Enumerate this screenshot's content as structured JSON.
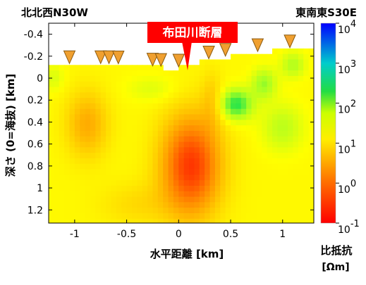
{
  "chart_data": {
    "type": "heatmap",
    "title": "布田川断層",
    "direction_left": "北北西N30W",
    "direction_right": "東南東S30E",
    "xlabel": "水平距離 [km]",
    "ylabel": "深さ (0=海抜) [km]",
    "xlim": [
      -1.25,
      1.3
    ],
    "ylim": [
      1.32,
      -0.5
    ],
    "x_ticks": [
      -1,
      -0.5,
      0,
      0.5,
      1
    ],
    "x_tick_labels": [
      "-1",
      "-0.5",
      "0",
      "0.5",
      "1"
    ],
    "y_ticks": [
      -0.4,
      -0.2,
      0,
      0.2,
      0.4,
      0.6,
      0.8,
      1,
      1.2
    ],
    "y_tick_labels": [
      "-0.4",
      "-0.2",
      "0",
      "0.2",
      "0.4",
      "0.6",
      "0.8",
      "1",
      "1.2"
    ],
    "colorbar": {
      "label": "比抵抗",
      "unit": "[Ωm]",
      "scale": "log",
      "range_exponent": [
        -1,
        4
      ],
      "ticks": [
        {
          "base": "10",
          "exp": "4",
          "value": 4
        },
        {
          "base": "10",
          "exp": "3",
          "value": 3
        },
        {
          "base": "10",
          "exp": "2",
          "value": 2
        },
        {
          "base": "10",
          "exp": "1",
          "value": 1
        },
        {
          "base": "10",
          "exp": "0",
          "value": 0
        },
        {
          "base": "10",
          "exp": "-1",
          "value": -1
        }
      ]
    },
    "fault_x": 0.05,
    "stations_x": [
      -1.05,
      -0.75,
      -0.67,
      -0.58,
      -0.25,
      -0.17,
      0.0,
      0.29,
      0.45,
      0.76,
      1.07
    ],
    "surface": [
      {
        "x": -1.25,
        "z": -0.12
      },
      {
        "x": -0.6,
        "z": -0.12
      },
      {
        "x": -0.3,
        "z": -0.1
      },
      {
        "x": 0.0,
        "z": -0.09
      },
      {
        "x": 0.2,
        "z": -0.15
      },
      {
        "x": 0.6,
        "z": -0.21
      },
      {
        "x": 1.0,
        "z": -0.26
      },
      {
        "x": 1.3,
        "z": -0.28
      }
    ],
    "resistivity_colors": {
      "log0": "#ff0000",
      "log1": "#ff8800",
      "log2": "#ffff00",
      "log2_5": "#aaff22",
      "log3": "#00dd55",
      "log4": "#0000ff"
    }
  }
}
